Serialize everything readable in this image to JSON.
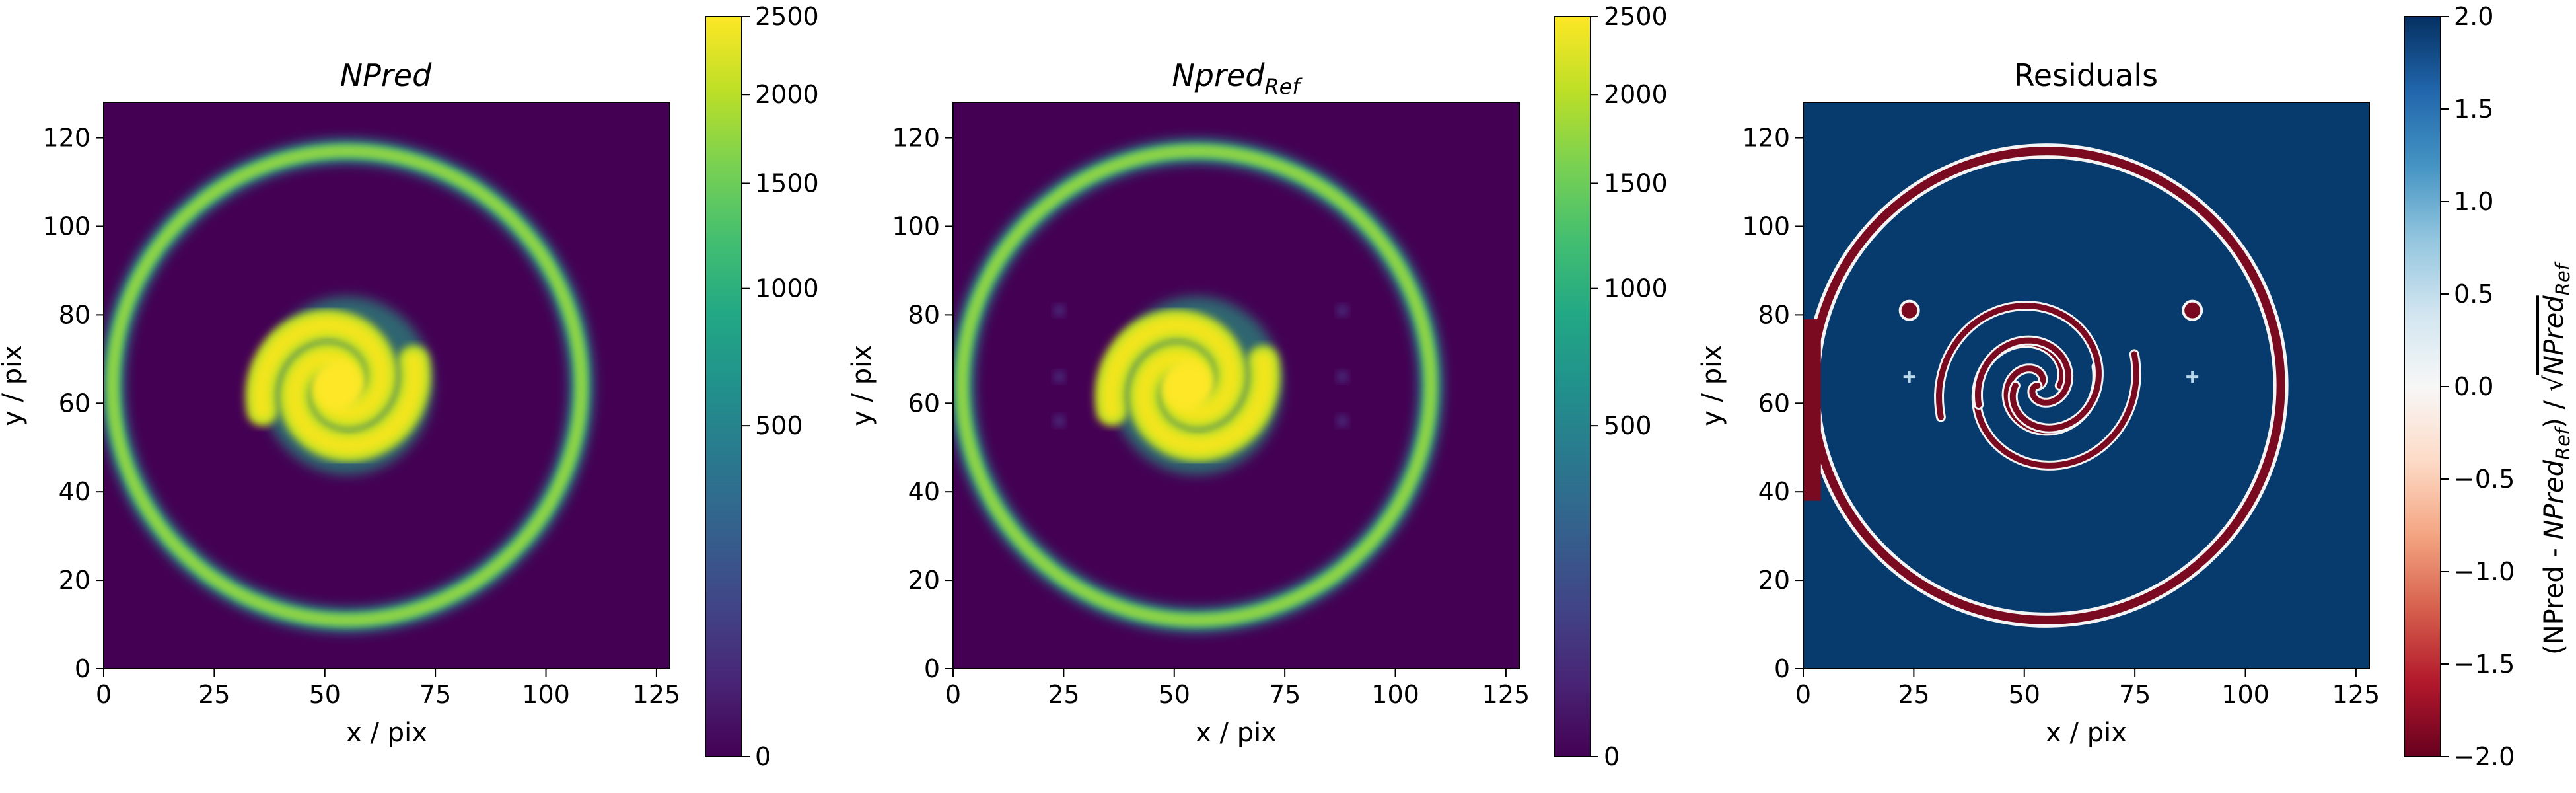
{
  "panels": [
    {
      "id": "npred",
      "title": "NPred",
      "title_sub": "",
      "title_italic": true,
      "xlabel": "x / pix",
      "ylabel": "y / pix",
      "xticks": [
        0,
        25,
        50,
        75,
        100,
        125
      ],
      "yticks": [
        0,
        20,
        40,
        60,
        80,
        100,
        120
      ],
      "xlim": [
        0,
        128
      ],
      "ylim": [
        0,
        128
      ],
      "colormap": "viridis",
      "colorbar": {
        "ticks": [
          0,
          500,
          1000,
          1500,
          2000,
          2500
        ],
        "range": [
          0,
          2500
        ],
        "scale": "sqrt",
        "label": ""
      }
    },
    {
      "id": "npred-ref",
      "title": "Npred",
      "title_sub": "Ref",
      "title_italic": true,
      "xlabel": "x / pix",
      "ylabel": "y / pix",
      "xticks": [
        0,
        25,
        50,
        75,
        100,
        125
      ],
      "yticks": [
        0,
        20,
        40,
        60,
        80,
        100,
        120
      ],
      "xlim": [
        0,
        128
      ],
      "ylim": [
        0,
        128
      ],
      "colormap": "viridis",
      "colorbar": {
        "ticks": [
          0,
          500,
          1000,
          1500,
          2000,
          2500
        ],
        "range": [
          0,
          2500
        ],
        "scale": "sqrt",
        "label": ""
      }
    },
    {
      "id": "residuals",
      "title": "Residuals",
      "title_sub": "",
      "title_italic": false,
      "xlabel": "x / pix",
      "ylabel": "y / pix",
      "xticks": [
        0,
        25,
        50,
        75,
        100,
        125
      ],
      "yticks": [
        0,
        20,
        40,
        60,
        80,
        100,
        120
      ],
      "xlim": [
        0,
        128
      ],
      "ylim": [
        0,
        128
      ],
      "colormap": "RdBu",
      "colorbar": {
        "ticks": [
          -2.0,
          -1.5,
          -1.0,
          -0.5,
          0.0,
          0.5,
          1.0,
          1.5,
          2.0
        ],
        "tick_labels": [
          "−2.0",
          "−1.5",
          "−1.0",
          "−0.5",
          "0.0",
          "0.5",
          "1.0",
          "1.5",
          "2.0"
        ],
        "range": [
          -2,
          2
        ],
        "scale": "linear",
        "label": "(NPred - NPred_Ref) / √NPred_Ref"
      }
    }
  ],
  "chart_data": [
    {
      "type": "heatmap",
      "title": "NPred",
      "xlabel": "x / pix",
      "ylabel": "y / pix",
      "xlim": [
        0,
        128
      ],
      "ylim": [
        0,
        128
      ],
      "grid": false,
      "colormap": "viridis",
      "color_range": [
        0,
        2500
      ],
      "features": [
        {
          "kind": "ring",
          "center": [
            55,
            64
          ],
          "radius": 53,
          "peak_value": 1700
        },
        {
          "kind": "spiral",
          "center": [
            53,
            64
          ],
          "extent": [
            35,
            76,
            45,
            85
          ],
          "peak_value": 2500
        }
      ]
    },
    {
      "type": "heatmap",
      "title": "Npred_Ref",
      "xlabel": "x / pix",
      "ylabel": "y / pix",
      "xlim": [
        0,
        128
      ],
      "ylim": [
        0,
        128
      ],
      "grid": false,
      "colormap": "viridis",
      "color_range": [
        0,
        2500
      ],
      "features": [
        {
          "kind": "ring",
          "center": [
            55,
            64
          ],
          "radius": 53,
          "peak_value": 1700
        },
        {
          "kind": "spiral",
          "center": [
            53,
            64
          ],
          "extent": [
            35,
            76,
            45,
            85
          ],
          "peak_value": 2500
        },
        {
          "kind": "faint_sources",
          "points": [
            [
              24,
              81
            ],
            [
              24,
              66
            ],
            [
              24,
              56
            ],
            [
              88,
              81
            ],
            [
              88,
              66
            ],
            [
              88,
              56
            ]
          ]
        }
      ]
    },
    {
      "type": "heatmap",
      "title": "Residuals",
      "xlabel": "x / pix",
      "ylabel": "y / pix",
      "xlim": [
        0,
        128
      ],
      "ylim": [
        0,
        128
      ],
      "grid": false,
      "colormap": "RdBu",
      "color_range": [
        -2,
        2
      ],
      "colorbar_label": "(NPred - NPred_Ref) / √NPred_Ref",
      "background_value": 2.0,
      "features": [
        {
          "kind": "ring_edge",
          "center": [
            55,
            64
          ],
          "radius": 53,
          "value": -2.0
        },
        {
          "kind": "spiral_edge",
          "center": [
            53,
            64
          ],
          "value": -2.0
        },
        {
          "kind": "point_sources",
          "points": [
            [
              24,
              81
            ],
            [
              88,
              81
            ]
          ],
          "value": -2.0
        },
        {
          "kind": "point_sources",
          "points": [
            [
              24,
              66
            ],
            [
              88,
              66
            ]
          ],
          "value": 0.5
        }
      ]
    }
  ]
}
